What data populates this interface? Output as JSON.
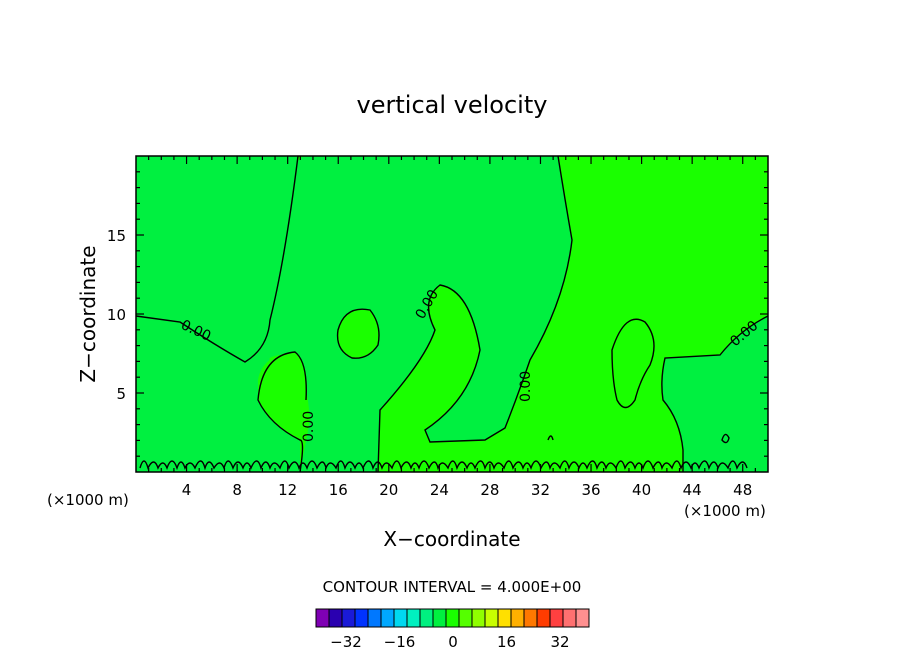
{
  "chart_data": {
    "type": "heatmap",
    "title": "vertical velocity",
    "xlabel": "X−coordinate",
    "ylabel": "Z−coordinate",
    "x_unit": "(×1000 m)",
    "y_unit": "(×1000 m)",
    "xlim": [
      0,
      50
    ],
    "ylim": [
      0,
      20
    ],
    "x_ticks": [
      4,
      8,
      12,
      16,
      20,
      24,
      28,
      32,
      36,
      40,
      44,
      48
    ],
    "y_ticks": [
      5,
      10,
      15
    ],
    "contour_label": "0.00",
    "contour_interval_text": "CONTOUR INTERVAL = 4.000E+00",
    "colorbar": {
      "ticks": [
        "−32",
        "−16",
        "0",
        "16",
        "32"
      ],
      "colors": [
        "#7f00b4",
        "#2a00b0",
        "#1a1ad8",
        "#0033ff",
        "#0078ff",
        "#00a8ff",
        "#00d8f0",
        "#00f0c0",
        "#00f080",
        "#00f040",
        "#1aff00",
        "#55ff00",
        "#90ff00",
        "#c8ff00",
        "#ffe000",
        "#ffb000",
        "#ff7800",
        "#ff3c00",
        "#ff4040",
        "#ff7070",
        "#ff9090"
      ]
    },
    "regions": {
      "background_color": "#1aff00",
      "negative_color": "#00f040"
    }
  }
}
